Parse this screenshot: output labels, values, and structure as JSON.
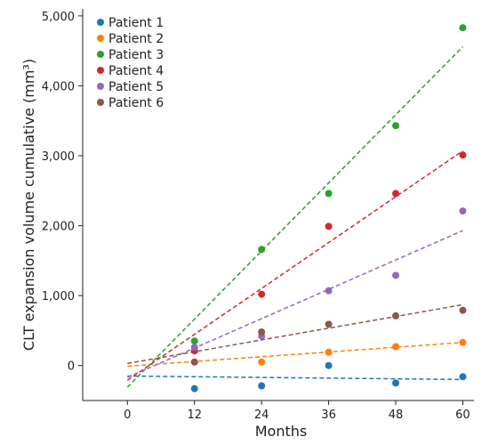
{
  "chart_data": {
    "type": "scatter",
    "xlabel": "Months",
    "ylabel": "CLT expansion volume cumulative (mm³)",
    "xlim": [
      -8,
      62
    ],
    "ylim": [
      -500,
      5100
    ],
    "xticks": [
      0,
      12,
      24,
      36,
      48,
      60
    ],
    "xtick_labels": [
      "0",
      "12",
      "24",
      "36",
      "48",
      "60"
    ],
    "yticks": [
      0,
      1000,
      2000,
      3000,
      4000,
      5000
    ],
    "ytick_labels": [
      "0",
      "1,000",
      "2,000",
      "3,000",
      "4,000",
      "5,000"
    ],
    "legend_position": "top-left",
    "trendlines": "dashed linear fit per series",
    "x": [
      12,
      24,
      36,
      48,
      60
    ],
    "series": [
      {
        "name": "Patient 1",
        "color": "#1f77b4",
        "values": [
          -330,
          -290,
          0,
          -250,
          -160
        ],
        "fit": [
          [
            0,
            -150
          ],
          [
            60,
            -200
          ]
        ]
      },
      {
        "name": "Patient 2",
        "color": "#ff7f0e",
        "values": [
          50,
          50,
          190,
          270,
          330
        ],
        "fit": [
          [
            0,
            -10
          ],
          [
            60,
            330
          ]
        ]
      },
      {
        "name": "Patient 3",
        "color": "#2ca02c",
        "values": [
          350,
          1660,
          2460,
          3430,
          4830
        ],
        "fit": [
          [
            0,
            -310
          ],
          [
            60,
            4560
          ]
        ]
      },
      {
        "name": "Patient 4",
        "color": "#d62728",
        "values": [
          210,
          1020,
          1990,
          2460,
          3010
        ],
        "fit": [
          [
            0,
            -210
          ],
          [
            60,
            3070
          ]
        ]
      },
      {
        "name": "Patient 5",
        "color": "#9467bd",
        "values": [
          260,
          420,
          1070,
          1290,
          2210
        ],
        "fit": [
          [
            0,
            -170
          ],
          [
            60,
            1930
          ]
        ]
      },
      {
        "name": "Patient 6",
        "color": "#8c564b",
        "values": [
          50,
          480,
          590,
          710,
          790
        ],
        "fit": [
          [
            0,
            30
          ],
          [
            60,
            870
          ]
        ]
      }
    ]
  }
}
